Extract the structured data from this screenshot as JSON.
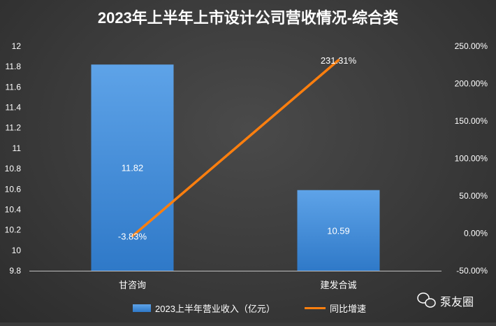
{
  "chart_data": {
    "type": "bar",
    "title": "2023年上半年上市设计公司营收情况-综合类",
    "categories": [
      "甘咨询",
      "建发合诚"
    ],
    "series": [
      {
        "name": "2023上半年营业收入（亿元）",
        "type": "bar",
        "axis": "left",
        "values": [
          11.82,
          10.59
        ],
        "labels": [
          "11.82",
          "10.59"
        ],
        "color": "#4a90d9"
      },
      {
        "name": "同比增速",
        "type": "line",
        "axis": "right",
        "values": [
          -3.83,
          231.31
        ],
        "labels": [
          "-3.83%",
          "231.31%"
        ],
        "color": "#ff7f0e"
      }
    ],
    "y_left": {
      "min": 9.8,
      "max": 12.0,
      "ticks": [
        9.8,
        10,
        10.2,
        10.4,
        10.6,
        10.8,
        11,
        11.2,
        11.4,
        11.6,
        11.8,
        12
      ],
      "tick_labels": [
        "9.8",
        "10",
        "10.2",
        "10.4",
        "10.6",
        "10.8",
        "11",
        "11.2",
        "11.4",
        "11.6",
        "11.8",
        "12"
      ]
    },
    "y_right": {
      "min": -50,
      "max": 250,
      "ticks": [
        -50,
        0,
        50,
        100,
        150,
        200,
        250
      ],
      "tick_labels": [
        "-50.00%",
        "0.00%",
        "50.00%",
        "100.00%",
        "150.00%",
        "200.00%",
        "250.00%"
      ]
    },
    "grid": false,
    "legend": "bottom"
  },
  "watermark": {
    "text": "泵友圈",
    "icon": "wechat-icon"
  }
}
